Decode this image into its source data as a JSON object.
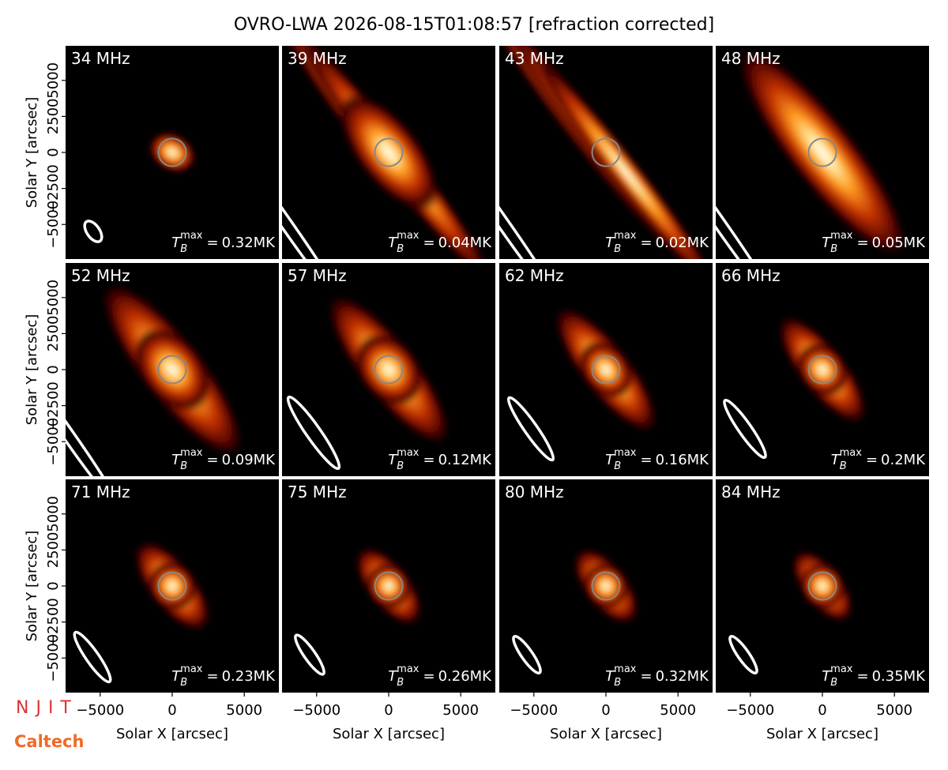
{
  "chart_data": {
    "type": "image-grid",
    "title": "OVRO-LWA 2026-08-15T01:08:57 [refraction corrected]",
    "xlabel": "Solar X [arcsec]",
    "ylabel": "Solar Y [arcsec]",
    "xlim": [
      -7400,
      7400
    ],
    "ylim": [
      -7400,
      7400
    ],
    "xticks": [
      {
        "value": -5000,
        "label": "−5000"
      },
      0,
      5000
    ],
    "yticks": [
      {
        "value": -5000,
        "label": "−5000"
      },
      {
        "value": -2500,
        "label": "−2500"
      },
      0,
      2500,
      5000
    ],
    "tb_symbol": {
      "base": "T",
      "sub": "B",
      "sup": "max",
      "relation": "="
    },
    "panels": [
      {
        "label": "34 MHz",
        "tb_max_label": "0.32MK"
      },
      {
        "label": "39 MHz",
        "tb_max_label": "0.04MK"
      },
      {
        "label": "43 MHz",
        "tb_max_label": "0.02MK"
      },
      {
        "label": "48 MHz",
        "tb_max_label": "0.05MK"
      },
      {
        "label": "52 MHz",
        "tb_max_label": "0.09MK"
      },
      {
        "label": "57 MHz",
        "tb_max_label": "0.12MK"
      },
      {
        "label": "62 MHz",
        "tb_max_label": "0.16MK"
      },
      {
        "label": "66 MHz",
        "tb_max_label": "0.2MK"
      },
      {
        "label": "71 MHz",
        "tb_max_label": "0.23MK"
      },
      {
        "label": "75 MHz",
        "tb_max_label": "0.26MK"
      },
      {
        "label": "80 MHz",
        "tb_max_label": "0.32MK"
      },
      {
        "label": "84 MHz",
        "tb_max_label": "0.35MK"
      }
    ]
  },
  "logos": [
    "NJIT",
    "Caltech"
  ]
}
